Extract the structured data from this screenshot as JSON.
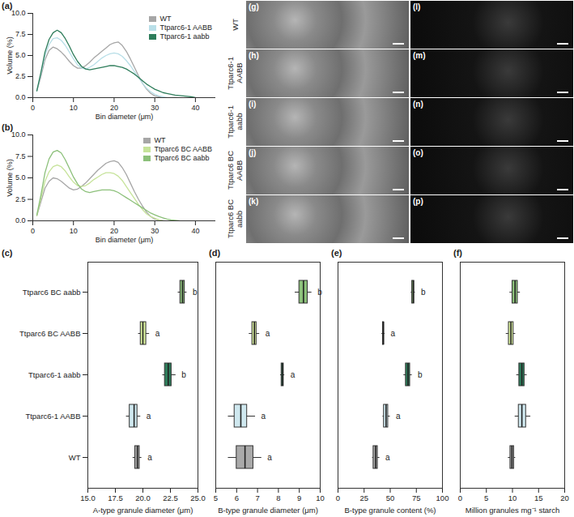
{
  "chart_data": [
    {
      "type": "line",
      "title": "(a)",
      "x_label": "Bin diameter (μm)",
      "y_label": "Volume (%)",
      "x": [
        1,
        2,
        3,
        4,
        5,
        6,
        7,
        8,
        9,
        10,
        11,
        12,
        13,
        14,
        15,
        16,
        17,
        18,
        19,
        20,
        21,
        22,
        23,
        24,
        25,
        26,
        27,
        28,
        29,
        30,
        31,
        32,
        33,
        34,
        35,
        36,
        37,
        38,
        39,
        40
      ],
      "series": [
        {
          "name": "WT",
          "color": "#a6a6a6",
          "values": [
            0.8,
            2.5,
            4.5,
            5.6,
            6.0,
            5.8,
            5.4,
            4.9,
            4.3,
            3.8,
            3.5,
            3.5,
            3.8,
            4.2,
            4.7,
            5.1,
            5.5,
            5.9,
            6.3,
            6.5,
            6.6,
            6.2,
            5.5,
            4.6,
            3.6,
            2.6,
            1.7,
            1.0,
            0.5,
            0.2,
            0.1,
            0,
            null,
            null,
            null,
            null,
            null,
            null,
            null,
            null
          ]
        },
        {
          "name": "Ttparc6-1 AABB",
          "color": "#b9dfe8",
          "values": [
            0.8,
            2.8,
            5.0,
            6.3,
            7.0,
            7.1,
            6.8,
            6.2,
            5.4,
            4.6,
            3.9,
            3.5,
            3.4,
            3.6,
            3.9,
            4.3,
            4.7,
            5.0,
            5.2,
            5.3,
            5.2,
            4.9,
            4.4,
            3.8,
            3.1,
            2.4,
            1.7,
            1.1,
            0.7,
            0.4,
            0.2,
            0.1,
            0,
            null,
            null,
            null,
            null,
            null,
            null,
            null
          ]
        },
        {
          "name": "Ttparc6-1 aabb",
          "color": "#2e7d5b",
          "values": [
            0.8,
            3.0,
            5.4,
            6.9,
            7.7,
            8.0,
            7.7,
            7.0,
            6.1,
            5.1,
            4.3,
            3.7,
            3.4,
            3.3,
            3.4,
            3.5,
            3.6,
            3.7,
            3.8,
            3.8,
            3.7,
            3.6,
            3.4,
            3.1,
            2.8,
            2.4,
            2.0,
            1.6,
            1.3,
            1.0,
            0.8,
            0.6,
            0.5,
            0.4,
            0.3,
            0.25,
            0.2,
            0.15,
            0.1,
            0
          ]
        }
      ],
      "xlim": [
        0,
        45
      ],
      "xticks": [
        0,
        10,
        20,
        30,
        40
      ],
      "ylim": [
        0,
        10
      ],
      "yticks": [
        {
          "value": 0,
          "label": "0.0"
        },
        {
          "value": 2.5,
          "label": "2.5"
        },
        {
          "value": 5,
          "label": "5.0"
        },
        {
          "value": 7.5,
          "label": "7.5"
        },
        {
          "value": 10,
          "label": "10.0"
        }
      ],
      "legend": "top-right"
    },
    {
      "type": "line",
      "title": "(b)",
      "x_label": "Bin diameter (μm)",
      "y_label": "Volume (%)",
      "x": [
        1,
        2,
        3,
        4,
        5,
        6,
        7,
        8,
        9,
        10,
        11,
        12,
        13,
        14,
        15,
        16,
        17,
        18,
        19,
        20,
        21,
        22,
        23,
        24,
        25,
        26,
        27,
        28,
        29,
        30,
        31,
        32,
        33,
        34,
        35,
        36,
        37,
        38,
        39,
        40
      ],
      "series": [
        {
          "name": "WT",
          "color": "#a6a6a6",
          "values": [
            0.6,
            2.2,
            3.8,
            4.6,
            5.0,
            4.9,
            4.6,
            4.2,
            3.8,
            3.6,
            3.7,
            4.0,
            4.4,
            4.9,
            5.4,
            5.9,
            6.3,
            6.7,
            6.9,
            7.0,
            6.8,
            6.2,
            5.4,
            4.4,
            3.4,
            2.5,
            1.7,
            1.0,
            0.5,
            0.2,
            0.1,
            0,
            null,
            null,
            null,
            null,
            null,
            null,
            null,
            null
          ]
        },
        {
          "name": "Ttparc6 BC AABB",
          "color": "#c6e39a",
          "values": [
            0.6,
            2.6,
            4.6,
            5.7,
            6.3,
            6.5,
            6.3,
            5.8,
            5.1,
            4.5,
            4.1,
            4.0,
            4.1,
            4.4,
            4.8,
            5.1,
            5.4,
            5.6,
            5.6,
            5.5,
            5.2,
            4.7,
            4.0,
            3.3,
            2.6,
            1.9,
            1.3,
            0.8,
            0.5,
            0.3,
            0.1,
            0,
            null,
            null,
            null,
            null,
            null,
            null,
            null,
            null
          ]
        },
        {
          "name": "Ttparc6 BC aabb",
          "color": "#8cc07a",
          "values": [
            0.7,
            3.0,
            5.6,
            7.2,
            8.0,
            8.2,
            7.9,
            7.1,
            6.1,
            5.1,
            4.3,
            3.7,
            3.4,
            3.3,
            3.4,
            3.5,
            3.6,
            3.6,
            3.6,
            3.5,
            3.3,
            3.0,
            2.7,
            2.4,
            2.1,
            1.8,
            1.5,
            1.2,
            0.9,
            0.7,
            0.5,
            0.35,
            0.2,
            0.1,
            0.05,
            0,
            null,
            null,
            null,
            null
          ]
        }
      ],
      "xlim": [
        0,
        45
      ],
      "xticks": [
        0,
        10,
        20,
        30,
        40
      ],
      "ylim": [
        0,
        10
      ],
      "yticks": [
        {
          "value": 0,
          "label": "0.0"
        },
        {
          "value": 2.5,
          "label": "2.5"
        },
        {
          "value": 5,
          "label": "5.0"
        },
        {
          "value": 7.5,
          "label": "7.5"
        },
        {
          "value": 10,
          "label": "10.0"
        }
      ],
      "legend": "top-right"
    },
    {
      "type": "box",
      "title": "(c)",
      "orientation": "horizontal",
      "x_label": "A-type granule diameter (μm)",
      "categories": [
        "Ttparc6 BC aabb",
        "Ttparc6 BC AABB",
        "Ttparc6-1 aabb",
        "Ttparc6-1 AABB",
        "WT"
      ],
      "colors": [
        "#8cc07a",
        "#d9ef9f",
        "#2e7d5b",
        "#cfe8ef",
        "#a9a9a9"
      ],
      "min": [
        23.2,
        19.6,
        21.8,
        18.5,
        19.1
      ],
      "q1": [
        23.4,
        19.8,
        22.0,
        18.8,
        19.3
      ],
      "median": [
        23.6,
        20.0,
        22.3,
        19.2,
        19.5
      ],
      "q3": [
        23.8,
        20.3,
        22.6,
        19.5,
        19.7
      ],
      "max": [
        24.0,
        20.6,
        23.0,
        19.8,
        19.9
      ],
      "letters": [
        "b",
        "a",
        "b",
        "a",
        "a"
      ],
      "xlim": [
        15,
        25
      ],
      "xticks": [
        {
          "value": 15,
          "label": "15.0"
        },
        {
          "value": 17.5,
          "label": "17.5"
        },
        {
          "value": 20,
          "label": "20.0"
        },
        {
          "value": 22.5,
          "label": "22.5"
        },
        {
          "value": 25,
          "label": "25.0"
        }
      ]
    },
    {
      "type": "box",
      "title": "(d)",
      "orientation": "horizontal",
      "x_label": "B-type granule diameter (μm)",
      "tick_labels": "x",
      "categories": [
        "Ttparc6 BC aabb",
        "Ttparc6 BC AABB",
        "Ttparc6-1 aabb",
        "Ttparc6-1 AABB",
        "WT"
      ],
      "colors": [
        "#8cc07a",
        "#d9ef9f",
        "#2e7d5b",
        "#cfe8ef",
        "#a9a9a9"
      ],
      "min": [
        8.8,
        6.6,
        8.1,
        5.6,
        5.6
      ],
      "q1": [
        9.0,
        6.75,
        8.15,
        5.9,
        6.0
      ],
      "median": [
        9.2,
        6.85,
        8.2,
        6.2,
        6.4
      ],
      "q3": [
        9.4,
        6.95,
        8.25,
        6.5,
        6.8
      ],
      "max": [
        9.6,
        7.1,
        8.3,
        6.9,
        7.2
      ],
      "letters": [
        "b",
        "a",
        "a",
        "a",
        "a"
      ],
      "xlim": [
        5,
        10
      ],
      "xticks": [
        5,
        6,
        7,
        8,
        9,
        10
      ]
    },
    {
      "type": "box",
      "title": "(e)",
      "orientation": "horizontal",
      "x_label": "B-type granule content (%)",
      "tick_labels": "x",
      "categories": [
        "Ttparc6 BC aabb",
        "Ttparc6 BC AABB",
        "Ttparc6-1 aabb",
        "Ttparc6-1 AABB",
        "WT"
      ],
      "colors": [
        "#8cc07a",
        "#d9ef9f",
        "#2e7d5b",
        "#cfe8ef",
        "#a9a9a9"
      ],
      "min": [
        70,
        42,
        63,
        43,
        33
      ],
      "q1": [
        71,
        43,
        65,
        44,
        34
      ],
      "median": [
        72,
        43.5,
        67,
        46,
        36
      ],
      "q3": [
        73,
        44,
        69,
        48,
        38
      ],
      "max": [
        74,
        45,
        71,
        50,
        40
      ],
      "letters": [
        "b",
        "a",
        "b",
        "a",
        "a"
      ],
      "xlim": [
        0,
        100
      ],
      "xticks": [
        0,
        25,
        50,
        75,
        100
      ]
    },
    {
      "type": "box",
      "title": "(f)",
      "orientation": "horizontal",
      "x_label": "Million granules mg⁻¹ starch",
      "tick_labels": "x",
      "categories": [
        "Ttparc6 BC aabb",
        "Ttparc6 BC AABB",
        "Ttparc6-1 aabb",
        "Ttparc6-1 AABB",
        "WT"
      ],
      "colors": [
        "#8cc07a",
        "#d9ef9f",
        "#2e7d5b",
        "#cfe8ef",
        "#a9a9a9"
      ],
      "min": [
        9.5,
        8.8,
        10.8,
        10.5,
        9.2
      ],
      "q1": [
        10,
        9.3,
        11.3,
        11.2,
        9.6
      ],
      "median": [
        10.5,
        9.7,
        11.8,
        11.8,
        9.9
      ],
      "q3": [
        11,
        10.2,
        12.3,
        12.6,
        10.3
      ],
      "max": [
        11.5,
        10.6,
        12.8,
        13.5,
        10.6
      ],
      "xlim": [
        0,
        20
      ],
      "xticks": [
        0,
        5,
        10,
        15,
        20
      ]
    }
  ],
  "micrographs": {
    "row_labels": [
      [
        "WT"
      ],
      [
        "Ttparc6-1",
        "AABB"
      ],
      [
        "Ttparc6-1",
        "aabb"
      ],
      [
        "Ttparc6 BC",
        "AABB"
      ],
      [
        "Ttparc6 BC",
        "aabb"
      ]
    ],
    "panels": [
      [
        "(g)",
        "(l)"
      ],
      [
        "(h)",
        "(m)"
      ],
      [
        "(i)",
        "(n)"
      ],
      [
        "(j)",
        "(o)"
      ],
      [
        "(k)",
        "(p)"
      ]
    ]
  }
}
